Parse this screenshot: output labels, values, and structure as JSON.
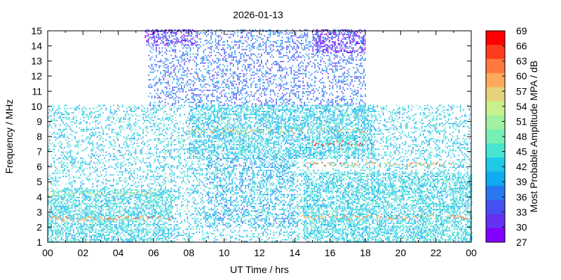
{
  "chart_data": {
    "type": "heatmap",
    "title": "2026-01-13",
    "xlabel": "UT Time / hrs",
    "ylabel": "Frequency / MHz",
    "colorbar_label": "Most Probable Amplitude MPA / dB",
    "xlim": [
      0,
      24
    ],
    "ylim": [
      1,
      15
    ],
    "x_ticks": [
      "00",
      "02",
      "04",
      "06",
      "08",
      "10",
      "12",
      "14",
      "16",
      "18",
      "20",
      "22",
      "00"
    ],
    "y_ticks": [
      "1",
      "2",
      "3",
      "4",
      "5",
      "6",
      "7",
      "8",
      "9",
      "10",
      "11",
      "12",
      "13",
      "14",
      "15"
    ],
    "colorbar_ticks": [
      "69",
      "66",
      "63",
      "60",
      "57",
      "54",
      "51",
      "48",
      "45",
      "42",
      "39",
      "36",
      "33",
      "30",
      "27"
    ],
    "colorbar_colors": [
      "#ff0000",
      "#ff3c1e",
      "#ff7840",
      "#ffaa5a",
      "#e6d27a",
      "#c8f08c",
      "#a0f0a0",
      "#78f0b4",
      "#46e6d2",
      "#1ec8e6",
      "#10aaf0",
      "#2878f0",
      "#4650f0",
      "#6432f0",
      "#8200ff"
    ],
    "grid": false,
    "legend_position": "right",
    "regions": [
      {
        "t": [
          5.7,
          18.0
        ],
        "f": [
          10.0,
          15.0
        ],
        "dB": 35,
        "density": 0.55
      },
      {
        "t": [
          15.0,
          18.0
        ],
        "f": [
          13.5,
          15.0
        ],
        "dB": 28,
        "density": 0.7
      },
      {
        "t": [
          5.5,
          8.5
        ],
        "f": [
          14.0,
          15.0
        ],
        "dB": 28,
        "density": 0.6
      },
      {
        "t": [
          8.0,
          18.5
        ],
        "f": [
          6.5,
          10.0
        ],
        "dB": 42,
        "density": 0.8
      },
      {
        "t": [
          0.0,
          24.0
        ],
        "f": [
          1.0,
          10.0
        ],
        "dB": 42,
        "density": 0.5
      },
      {
        "t": [
          0.0,
          7.0
        ],
        "f": [
          1.0,
          4.5
        ],
        "dB": 43,
        "density": 0.85
      },
      {
        "t": [
          14.5,
          24.0
        ],
        "f": [
          1.0,
          5.5
        ],
        "dB": 43,
        "density": 0.8
      },
      {
        "t": [
          9.0,
          14.0
        ],
        "f": [
          2.0,
          6.5
        ],
        "dB": 39,
        "density": 0.45
      }
    ],
    "bands": [
      {
        "t": [
          0.0,
          7.0
        ],
        "f": 2.5,
        "dB": 62
      },
      {
        "t": [
          0.0,
          6.0
        ],
        "f": 4.2,
        "dB": 54
      },
      {
        "t": [
          8.0,
          18.0
        ],
        "f": 8.3,
        "dB": 57
      },
      {
        "t": [
          14.0,
          24.0
        ],
        "f": 2.6,
        "dB": 60
      },
      {
        "t": [
          15.0,
          18.0
        ],
        "f": 7.5,
        "dB": 66
      },
      {
        "t": [
          14.5,
          23.0
        ],
        "f": 6.1,
        "dB": 60
      }
    ]
  }
}
